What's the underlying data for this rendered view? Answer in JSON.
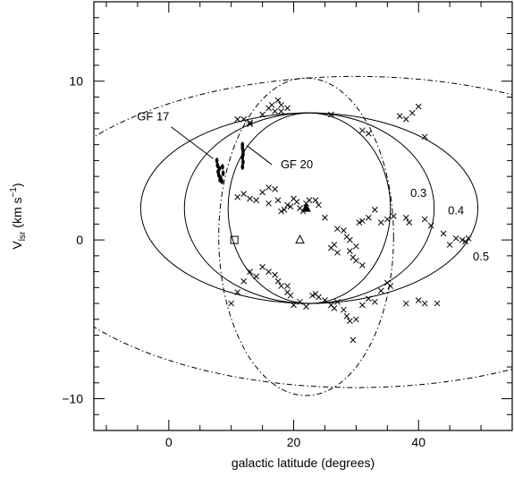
{
  "chart_data": {
    "type": "scatter",
    "xlabel": "galactic latitude (degrees)",
    "ylabel_main": "V",
    "ylabel_sub": "lsr",
    "ylabel_unit_pre": "(km s",
    "ylabel_unit_sup": "−1",
    "ylabel_unit_post": ")",
    "xlim": [
      -12,
      55
    ],
    "ylim": [
      -12,
      15
    ],
    "xticks": [
      0,
      20,
      40
    ],
    "xtick_labels": [
      "0",
      "20",
      "40"
    ],
    "xminor_step": 5,
    "yticks": [
      -10,
      0,
      10
    ],
    "ytick_labels": [
      "−10",
      "0",
      "10"
    ],
    "yminor_step": 1,
    "grid": false,
    "ellipses": [
      {
        "name": "0.3",
        "cx": 22.5,
        "cy": 2.0,
        "rx": 13.0,
        "ry": 6.0,
        "style": "solid"
      },
      {
        "name": "0.4",
        "cx": 22.5,
        "cy": 2.0,
        "rx": 20.0,
        "ry": 6.0,
        "style": "solid"
      },
      {
        "name": "0.5",
        "cx": 22.5,
        "cy": 2.0,
        "rx": 27.0,
        "ry": 6.0,
        "style": "solid"
      },
      {
        "name": "",
        "cx": 22.0,
        "cy": 0.2,
        "rx": 14.0,
        "ry": 10.0,
        "style": "dashdot"
      },
      {
        "name": "",
        "cx": 30.0,
        "cy": 0.5,
        "rx": 53.0,
        "ry": 9.8,
        "style": "dashdot"
      }
    ],
    "ellipse_labels": [
      {
        "text": "0.3",
        "x": 40.0,
        "y": 3.0
      },
      {
        "text": "0.4",
        "x": 46.0,
        "y": 1.9
      },
      {
        "text": "0.5",
        "x": 50.0,
        "y": -1.0
      }
    ],
    "clouds": [
      {
        "name": "GF 17",
        "label_x": -2.5,
        "label_y": 7.8,
        "points": [
          [
            7.7,
            5.0
          ],
          [
            7.8,
            4.7
          ],
          [
            7.9,
            4.3
          ],
          [
            8.1,
            4.5
          ],
          [
            8.3,
            3.9
          ],
          [
            8.0,
            4.1
          ],
          [
            8.5,
            3.7
          ],
          [
            8.6,
            4.6
          ],
          [
            8.7,
            4.2
          ],
          [
            8.2,
            3.8
          ]
        ]
      },
      {
        "name": "GF 20",
        "label_x": 20.5,
        "label_y": 4.8,
        "points": [
          [
            11.8,
            6.0
          ],
          [
            11.9,
            5.6
          ],
          [
            11.8,
            5.2
          ],
          [
            11.9,
            4.9
          ],
          [
            11.8,
            4.6
          ],
          [
            11.9,
            5.4
          ],
          [
            11.8,
            5.8
          ]
        ]
      }
    ],
    "crosses": [
      [
        11,
        7.6
      ],
      [
        12,
        7.6
      ],
      [
        13,
        7.3
      ],
      [
        13,
        7.4
      ],
      [
        15,
        7.9
      ],
      [
        16,
        8.3
      ],
      [
        16.5,
        8.5
      ],
      [
        17,
        8.1
      ],
      [
        17.5,
        8.8
      ],
      [
        18,
        8.5
      ],
      [
        18,
        8.1
      ],
      [
        19,
        8.3
      ],
      [
        26,
        7.9
      ],
      [
        31,
        6.9
      ],
      [
        32,
        6.7
      ],
      [
        37,
        7.8
      ],
      [
        38,
        7.6
      ],
      [
        39,
        8.0
      ],
      [
        40,
        8.4
      ],
      [
        41,
        6.5
      ],
      [
        11,
        2.7
      ],
      [
        12,
        2.9
      ],
      [
        13,
        2.6
      ],
      [
        14,
        2.5
      ],
      [
        15,
        3.0
      ],
      [
        16,
        3.3
      ],
      [
        16,
        2.3
      ],
      [
        17,
        3.2
      ],
      [
        17.5,
        2.5
      ],
      [
        18,
        1.8
      ],
      [
        18.5,
        1.9
      ],
      [
        19,
        2.2
      ],
      [
        19.5,
        2.1
      ],
      [
        20,
        2.6
      ],
      [
        20.5,
        2.4
      ],
      [
        21,
        2.0
      ],
      [
        21.5,
        1.8
      ],
      [
        22,
        2.3
      ],
      [
        22.5,
        2.5
      ],
      [
        23.5,
        2.5
      ],
      [
        24,
        2.2
      ],
      [
        25,
        1.4
      ],
      [
        27,
        0.7
      ],
      [
        28,
        0.6
      ],
      [
        28.5,
        0.2
      ],
      [
        29,
        0.0
      ],
      [
        30,
        -0.4
      ],
      [
        30.5,
        1.1
      ],
      [
        31,
        1.2
      ],
      [
        32,
        1.4
      ],
      [
        33,
        1.9
      ],
      [
        34,
        1.1
      ],
      [
        35,
        1.3
      ],
      [
        36,
        1.5
      ],
      [
        38,
        1.4
      ],
      [
        38.5,
        1.1
      ],
      [
        41,
        1.3
      ],
      [
        42,
        0.9
      ],
      [
        44,
        0.4
      ],
      [
        45,
        -0.3
      ],
      [
        46,
        0.1
      ],
      [
        47,
        0.0
      ],
      [
        47.5,
        -0.1
      ],
      [
        48,
        0.1
      ],
      [
        26,
        -0.5
      ],
      [
        26.5,
        -0.3
      ],
      [
        27,
        -0.8
      ],
      [
        29,
        -0.7
      ],
      [
        29.5,
        -1.1
      ],
      [
        30,
        -1.3
      ],
      [
        31,
        -1.6
      ],
      [
        10,
        -4.0
      ],
      [
        11,
        -3.3
      ],
      [
        12,
        -2.6
      ],
      [
        13,
        -2.0
      ],
      [
        14,
        -2.3
      ],
      [
        15,
        -1.7
      ],
      [
        16,
        -2.0
      ],
      [
        17,
        -2.2
      ],
      [
        17.5,
        -2.6
      ],
      [
        18,
        -2.9
      ],
      [
        19,
        -3.3
      ],
      [
        19,
        -2.9
      ],
      [
        19.5,
        -3.5
      ],
      [
        20,
        -4.1
      ],
      [
        21,
        -3.9
      ],
      [
        22,
        -4.2
      ],
      [
        23,
        -3.5
      ],
      [
        23.5,
        -3.4
      ],
      [
        24,
        -3.6
      ],
      [
        25,
        -3.8
      ],
      [
        26,
        -4.1
      ],
      [
        26.5,
        -4.3
      ],
      [
        27,
        -3.9
      ],
      [
        28,
        -4.4
      ],
      [
        28.5,
        -4.8
      ],
      [
        29,
        -5.1
      ],
      [
        29.5,
        -6.3
      ],
      [
        30,
        -5.0
      ],
      [
        31,
        -4.1
      ],
      [
        32,
        -3.7
      ],
      [
        33,
        -3.9
      ],
      [
        34,
        -3.2
      ],
      [
        35,
        -2.7
      ],
      [
        35.5,
        -2.9
      ],
      [
        38,
        -4.0
      ],
      [
        40,
        -3.8
      ],
      [
        41,
        -4.0
      ],
      [
        43,
        -4.0
      ]
    ],
    "open_square": [
      10.5,
      0.0
    ],
    "open_triangle": [
      21.0,
      0.0
    ],
    "filled_triangle": [
      22.0,
      2.0
    ]
  }
}
